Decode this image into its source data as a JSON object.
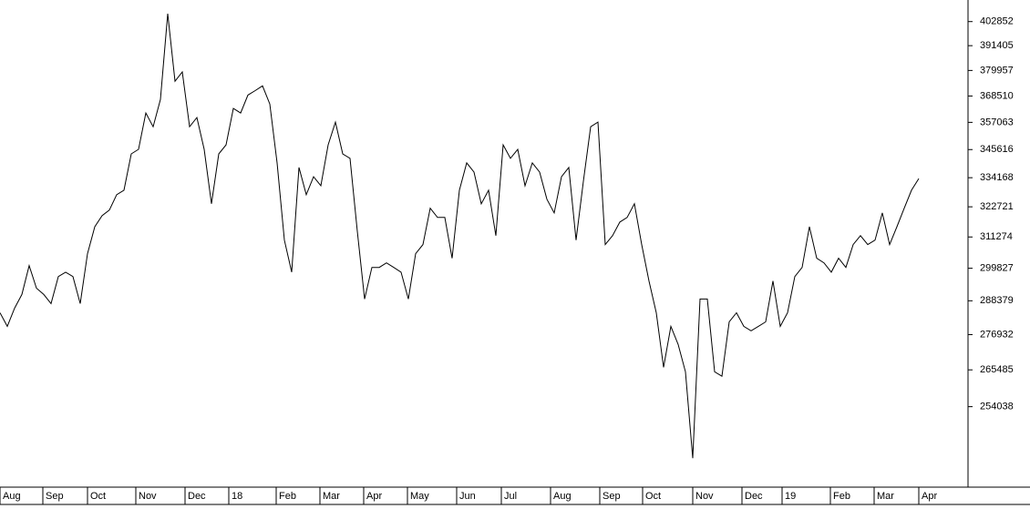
{
  "chart_data": {
    "type": "line",
    "color": "#000000",
    "log": true,
    "grid": false,
    "values": [
      284250,
      279680,
      285820,
      290560,
      300770,
      292760,
      290560,
      287400,
      296860,
      298440,
      296860,
      287400,
      305110,
      315110,
      319330,
      321450,
      327430,
      329190,
      343850,
      345700,
      361080,
      355200,
      366970,
      406630,
      375100,
      379300,
      355200,
      359120,
      345700,
      323910,
      343850,
      347560,
      363050,
      361080,
      368940,
      370900,
      373000,
      365010,
      340130,
      310110,
      298440,
      338280,
      327430,
      334570,
      330950,
      347560,
      357160,
      343850,
      341990,
      313440,
      288980,
      300110,
      300110,
      301770,
      300110,
      298440,
      288980,
      305110,
      308440,
      322150,
      318630,
      318630,
      303440,
      329190,
      340130,
      336420,
      323910,
      329190,
      311780,
      347560,
      341990,
      345700,
      330950,
      340130,
      336420,
      325670,
      320390,
      334570,
      338280,
      310110,
      332710,
      355200,
      357160,
      308440,
      311780,
      316870,
      318630,
      323910,
      308440,
      295290,
      284250,
      266290,
      279680,
      273690,
      264870,
      238840,
      288980,
      288980,
      264870,
      263460,
      281170,
      284250,
      279680,
      278180,
      279680,
      281170,
      295290,
      279680,
      284250,
      296860,
      300110,
      315110,
      303440,
      301770,
      298440,
      303440,
      300110,
      308440,
      311780,
      308440,
      310110,
      320390,
      308440,
      315110,
      322150,
      329190,
      333820
    ],
    "xlim": [
      0,
      132.75
    ],
    "xticks": [
      {
        "value": 0,
        "label": "Aug"
      },
      {
        "value": 5.875,
        "label": "Sep"
      },
      {
        "value": 12,
        "label": "Oct"
      },
      {
        "value": 18.625,
        "label": "Nov"
      },
      {
        "value": 25.375,
        "label": "Dec"
      },
      {
        "value": 31.375,
        "label": "18"
      },
      {
        "value": 37.875,
        "label": "Feb"
      },
      {
        "value": 43.875,
        "label": "Mar"
      },
      {
        "value": 49.875,
        "label": "Apr"
      },
      {
        "value": 55.875,
        "label": "May"
      },
      {
        "value": 62.625,
        "label": "Jun"
      },
      {
        "value": 68.75,
        "label": "Jul"
      },
      {
        "value": 75.5,
        "label": "Aug"
      },
      {
        "value": 82.25,
        "label": "Sep"
      },
      {
        "value": 88.125,
        "label": "Oct"
      },
      {
        "value": 95,
        "label": "Nov"
      },
      {
        "value": 101.75,
        "label": "Dec"
      },
      {
        "value": 107.25,
        "label": "19"
      },
      {
        "value": 113.875,
        "label": "Feb"
      },
      {
        "value": 119.875,
        "label": "Mar"
      },
      {
        "value": 126,
        "label": "Apr"
      }
    ],
    "ylim": [
      230700,
      413400
    ],
    "yticks": [
      402852,
      391405,
      379957,
      368510,
      357063,
      345616,
      334168,
      322721,
      311274,
      299827,
      288379,
      276932,
      265485,
      254038
    ]
  }
}
